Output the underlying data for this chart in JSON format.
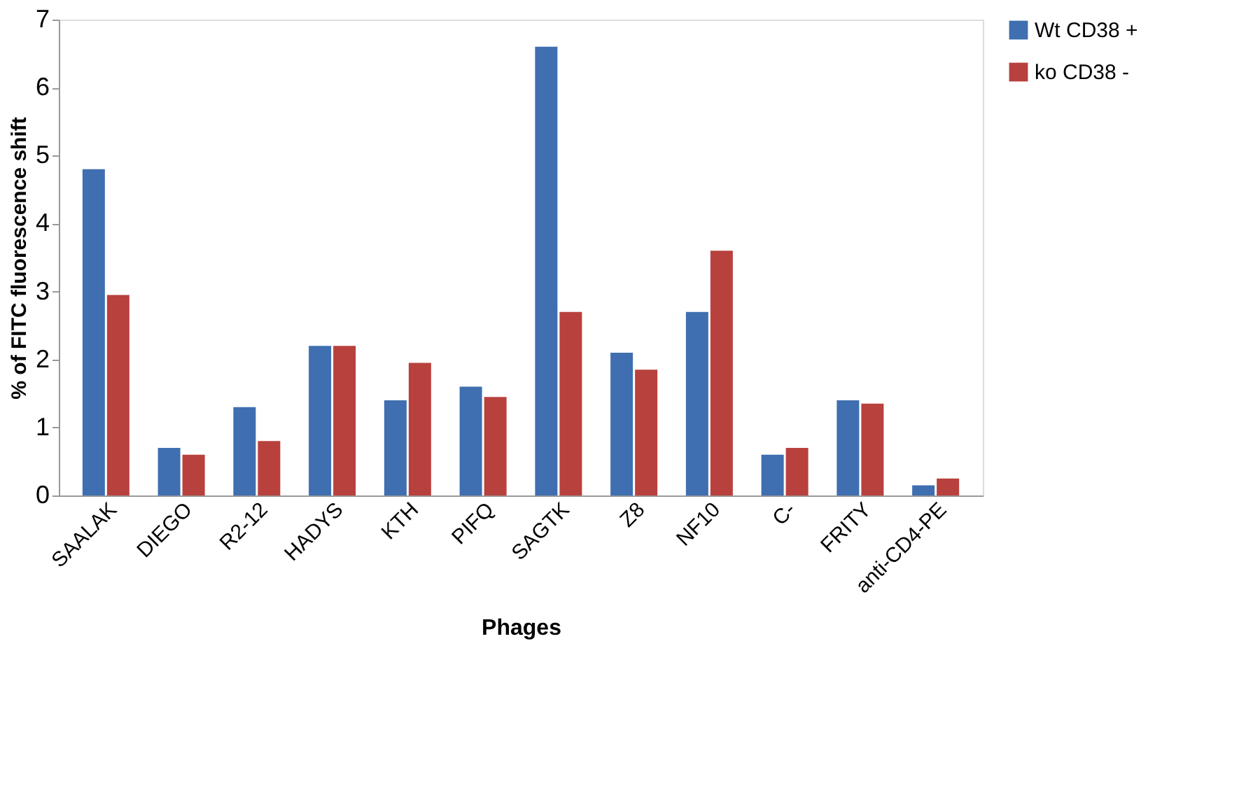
{
  "chart_data": {
    "type": "bar",
    "xlabel": "Phages",
    "ylabel": "% of FITC fluorescence shift",
    "categories": [
      "SAALAK",
      "DIEGO",
      "R2-12",
      "HADYS",
      "KTH",
      "PIFQ",
      "SAGTK",
      "Z8",
      "NF10",
      "C-",
      "FRITY",
      "anti-CD4-PE"
    ],
    "series": [
      {
        "name": "Wt CD38 +",
        "color": "#3f6fb0",
        "values": [
          4.8,
          0.7,
          1.3,
          2.2,
          1.4,
          1.6,
          6.6,
          2.1,
          2.7,
          0.6,
          1.4,
          0.15
        ]
      },
      {
        "name": "ko CD38 -",
        "color": "#b8413d",
        "values": [
          2.95,
          0.6,
          0.8,
          2.2,
          1.95,
          1.45,
          2.7,
          1.85,
          3.6,
          0.7,
          1.35,
          0.25
        ]
      }
    ],
    "ylim": [
      0,
      7
    ],
    "yticks": [
      0,
      1,
      2,
      3,
      4,
      5,
      6,
      7
    ],
    "grid": false,
    "legend": "top right"
  }
}
